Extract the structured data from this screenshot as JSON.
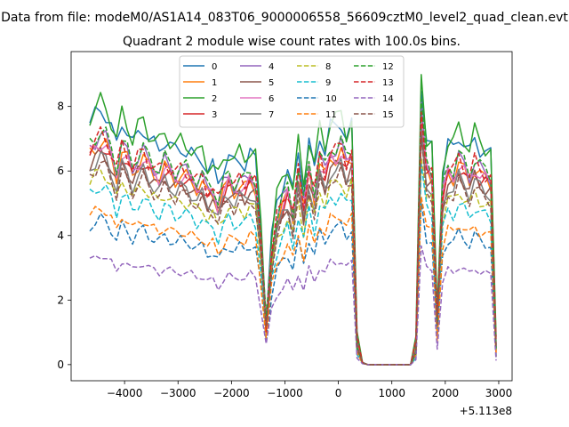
{
  "chart_data": {
    "type": "line",
    "suptitle": "Data from file: modeM0/AS1A14_083T06_9000006558_56609cztM0_level2_quad_clean.evt",
    "title": "Quadrant 2 module wise count rates with 100.0s bins.",
    "xlabel": "",
    "ylabel": "",
    "x_offset_label": "+5.113e8",
    "xlim": [
      -5000,
      3250
    ],
    "ylim": [
      -0.5,
      9.7
    ],
    "xticks": [
      -4000,
      -3000,
      -2000,
      -1000,
      0,
      1000,
      2000,
      3000
    ],
    "xtick_labels": [
      "−4000",
      "−3000",
      "−2000",
      "−1000",
      "0",
      "1000",
      "2000",
      "3000"
    ],
    "yticks": [
      0,
      2,
      4,
      6,
      8
    ],
    "ytick_labels": [
      "0",
      "2",
      "4",
      "6",
      "8"
    ],
    "legend_position": "upper center",
    "series": [
      {
        "name": "0",
        "color": "#1f77b4",
        "dash": "solid",
        "level": 7.0
      },
      {
        "name": "1",
        "color": "#ff7f0e",
        "dash": "solid",
        "level": 6.1
      },
      {
        "name": "2",
        "color": "#2ca02c",
        "dash": "solid",
        "level": 7.2
      },
      {
        "name": "3",
        "color": "#d62728",
        "dash": "solid",
        "level": 6.0
      },
      {
        "name": "4",
        "color": "#9467bd",
        "dash": "solid",
        "level": 6.3
      },
      {
        "name": "5",
        "color": "#8c564b",
        "dash": "solid",
        "level": 5.8
      },
      {
        "name": "6",
        "color": "#e377c2",
        "dash": "solid",
        "level": 6.1
      },
      {
        "name": "7",
        "color": "#7f7f7f",
        "dash": "solid",
        "level": 5.7
      },
      {
        "name": "8",
        "color": "#bcbd22",
        "dash": "dashed",
        "level": 5.3
      },
      {
        "name": "9",
        "color": "#17becf",
        "dash": "dashed",
        "level": 4.9
      },
      {
        "name": "10",
        "color": "#1f77b4",
        "dash": "dashed",
        "level": 4.0
      },
      {
        "name": "11",
        "color": "#ff7f0e",
        "dash": "dashed",
        "level": 4.3
      },
      {
        "name": "12",
        "color": "#2ca02c",
        "dash": "dashed",
        "level": 6.4
      },
      {
        "name": "13",
        "color": "#d62728",
        "dash": "dashed",
        "level": 6.3
      },
      {
        "name": "14",
        "color": "#9467bd",
        "dash": "dashed",
        "level": 3.0
      },
      {
        "name": "15",
        "color": "#8c564b",
        "dash": "dashed",
        "level": 5.5
      }
    ],
    "profile": {
      "x": [
        -4650,
        -4550,
        -4450,
        -4350,
        -4250,
        -4150,
        -4050,
        -3950,
        -3850,
        -3750,
        -3650,
        -3550,
        -3450,
        -3350,
        -3250,
        -3150,
        -3050,
        -2950,
        -2850,
        -2750,
        -2650,
        -2550,
        -2450,
        -2350,
        -2250,
        -2150,
        -2050,
        -1950,
        -1850,
        -1750,
        -1650,
        -1550,
        -1450,
        -1350,
        -1250,
        -1150,
        -1050,
        -950,
        -850,
        -750,
        -650,
        -550,
        -450,
        -350,
        -250,
        -150,
        -50,
        50,
        150,
        250,
        350,
        450,
        550,
        650,
        750,
        850,
        950,
        1050,
        1150,
        1250,
        1350,
        1450,
        1550,
        1650,
        1750,
        1850,
        1950,
        2050,
        2150,
        2250,
        2350,
        2450,
        2550,
        2650,
        2750,
        2850,
        2950
      ],
      "y": [
        1.07,
        1.1,
        1.13,
        1.11,
        1.05,
        0.96,
        1.08,
        1.04,
        0.97,
        1.02,
        1.05,
        1.0,
        0.97,
        0.95,
        1.0,
        0.97,
        0.94,
        0.96,
        0.95,
        0.93,
        0.9,
        0.92,
        0.86,
        0.87,
        0.8,
        0.88,
        0.92,
        0.88,
        0.91,
        0.89,
        0.93,
        0.9,
        0.6,
        0.2,
        0.55,
        0.72,
        0.8,
        0.86,
        0.75,
        0.95,
        0.78,
        0.98,
        0.85,
        1.02,
        0.95,
        1.05,
        1.05,
        1.08,
        1.0,
        1.05,
        0.1,
        0.01,
        0.0,
        0.0,
        0.0,
        0.0,
        0.0,
        0.0,
        0.0,
        0.0,
        0.0,
        0.08,
        1.25,
        0.98,
        0.95,
        0.2,
        0.85,
        0.97,
        0.95,
        1.02,
        0.98,
        0.93,
        1.0,
        0.96,
        0.94,
        0.92,
        0.08
      ]
    }
  }
}
